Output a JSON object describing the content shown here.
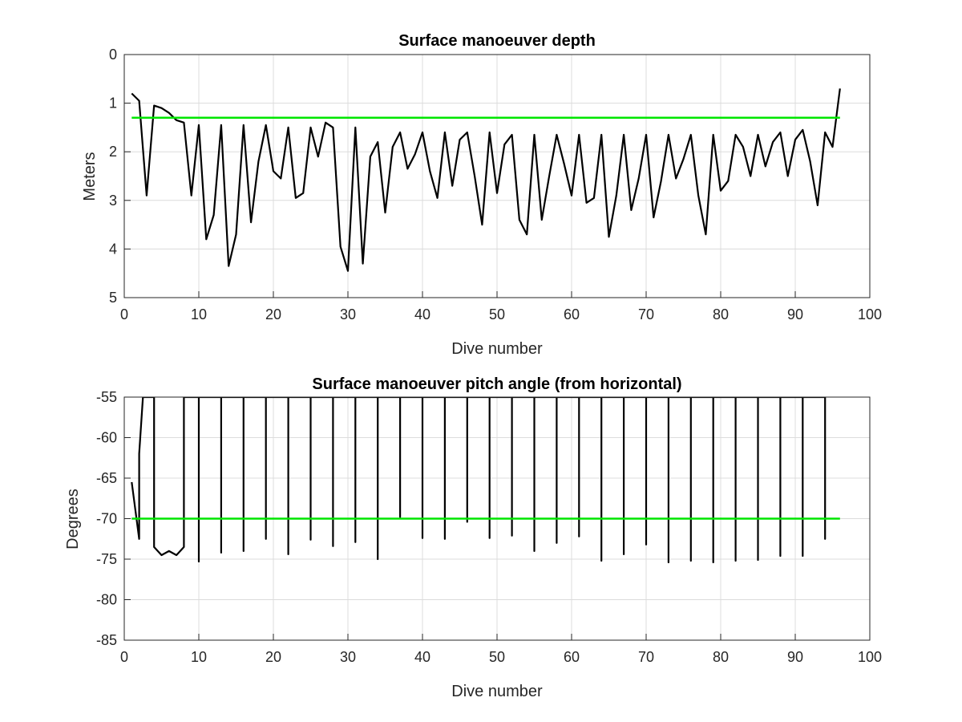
{
  "figure": {
    "background": "#ffffff",
    "axis_color": "#262626",
    "grid_color": "#dcdcdc"
  },
  "chart_data": [
    {
      "type": "line",
      "title": "Surface manoeuver depth",
      "xlabel": "Dive number",
      "ylabel": "Meters",
      "xlim": [
        0,
        100
      ],
      "ylim": [
        0,
        5
      ],
      "y_reversed": true,
      "grid": true,
      "xticks": [
        0,
        10,
        20,
        30,
        40,
        50,
        60,
        70,
        80,
        90,
        100
      ],
      "yticks": [
        0,
        1,
        2,
        3,
        4,
        5
      ],
      "series": [
        {
          "color": "#000000",
          "x": [
            1,
            2,
            3,
            4,
            5,
            6,
            7,
            8,
            9,
            10,
            11,
            12,
            13,
            14,
            15,
            16,
            17,
            18,
            19,
            20,
            21,
            22,
            23,
            24,
            25,
            26,
            27,
            28,
            29,
            30,
            31,
            32,
            33,
            34,
            35,
            36,
            37,
            38,
            39,
            40,
            41,
            42,
            43,
            44,
            45,
            46,
            47,
            48,
            49,
            50,
            51,
            52,
            53,
            54,
            55,
            56,
            57,
            58,
            59,
            60,
            61,
            62,
            63,
            64,
            65,
            66,
            67,
            68,
            69,
            70,
            71,
            72,
            73,
            74,
            75,
            76,
            77,
            78,
            79,
            80,
            81,
            82,
            83,
            84,
            85,
            86,
            87,
            88,
            89,
            90,
            91,
            92,
            93,
            94,
            95,
            96
          ],
          "values": [
            0.8,
            0.95,
            2.9,
            1.05,
            1.1,
            1.2,
            1.35,
            1.4,
            2.9,
            1.45,
            3.8,
            3.3,
            1.45,
            4.35,
            3.7,
            1.45,
            3.45,
            2.2,
            1.45,
            2.4,
            2.55,
            1.5,
            2.95,
            2.85,
            1.5,
            2.1,
            1.4,
            1.5,
            3.95,
            4.45,
            1.5,
            4.3,
            2.1,
            1.8,
            3.25,
            1.9,
            1.6,
            2.35,
            2.05,
            1.6,
            2.4,
            2.95,
            1.6,
            2.7,
            1.75,
            1.6,
            2.5,
            3.5,
            1.6,
            2.85,
            1.85,
            1.65,
            3.4,
            3.7,
            1.65,
            3.4,
            2.5,
            1.65,
            2.25,
            2.9,
            1.65,
            3.05,
            2.95,
            1.65,
            3.75,
            2.9,
            1.65,
            3.2,
            2.55,
            1.65,
            3.35,
            2.6,
            1.65,
            2.55,
            2.15,
            1.65,
            2.9,
            3.7,
            1.65,
            2.8,
            2.6,
            1.65,
            1.9,
            2.5,
            1.65,
            2.3,
            1.8,
            1.6,
            2.5,
            1.75,
            1.55,
            2.2,
            3.1,
            1.6,
            1.9,
            0.7
          ]
        },
        {
          "color": "#00e600",
          "x": [
            1,
            96
          ],
          "values": [
            1.3,
            1.3
          ]
        }
      ]
    },
    {
      "type": "line",
      "title": "Surface manoeuver pitch angle (from horizontal)",
      "xlabel": "Dive number",
      "ylabel": "Degrees",
      "xlim": [
        0,
        100
      ],
      "ylim": [
        -85,
        -55
      ],
      "grid": true,
      "xticks": [
        0,
        10,
        20,
        30,
        40,
        50,
        60,
        70,
        80,
        90,
        100
      ],
      "yticks": [
        -55,
        -60,
        -65,
        -70,
        -75,
        -80,
        -85
      ],
      "series": [
        {
          "color": "#000000",
          "x": [
            1,
            2,
            2,
            2.5,
            4,
            4,
            5,
            6,
            7,
            8,
            8,
            10,
            10,
            10,
            13,
            13,
            13,
            16,
            16,
            16,
            19,
            19,
            19,
            22,
            22,
            22,
            25,
            25,
            25,
            28,
            28,
            28,
            31,
            31,
            31,
            34,
            34,
            34,
            37,
            37,
            37,
            40,
            40,
            40,
            43,
            43,
            43,
            46,
            46,
            46,
            49,
            49,
            49,
            52,
            52,
            52,
            55,
            55,
            55,
            58,
            58,
            58,
            61,
            61,
            61,
            64,
            64,
            64,
            67,
            67,
            67,
            70,
            70,
            70,
            73,
            73,
            73,
            76,
            76,
            76,
            79,
            79,
            79,
            82,
            82,
            82,
            85,
            85,
            85,
            88,
            88,
            88,
            91,
            91,
            91,
            94,
            94,
            94
          ],
          "values": [
            -65.5,
            -72.5,
            -62,
            -55,
            -55,
            -73.5,
            -74.5,
            -74,
            -74.5,
            -73.5,
            -55,
            -55,
            -75.3,
            -55,
            -55,
            -74.2,
            -55,
            -55,
            -74,
            -55,
            -55,
            -72.5,
            -55,
            -55,
            -74.4,
            -55,
            -55,
            -72.6,
            -55,
            -55,
            -73.4,
            -55,
            -55,
            -72.9,
            -55,
            -55,
            -75,
            -55,
            -55,
            -69.8,
            -55,
            -55,
            -72.4,
            -55,
            -55,
            -72.5,
            -55,
            -55,
            -70.4,
            -55,
            -55,
            -72.4,
            -55,
            -55,
            -72.1,
            -55,
            -55,
            -74,
            -55,
            -55,
            -73,
            -55,
            -55,
            -72.2,
            -55,
            -55,
            -75.2,
            -55,
            -55,
            -74.4,
            -55,
            -55,
            -73.2,
            -55,
            -55,
            -75.4,
            -55,
            -55,
            -75.2,
            -55,
            -55,
            -75.4,
            -55,
            -55,
            -75.2,
            -55,
            -55,
            -75.1,
            -55,
            -55,
            -74.6,
            -55,
            -55,
            -74.6,
            -55,
            -55,
            -72.5,
            -55
          ]
        },
        {
          "color": "#00e600",
          "x": [
            1,
            96
          ],
          "values": [
            -70,
            -70
          ]
        }
      ]
    }
  ]
}
